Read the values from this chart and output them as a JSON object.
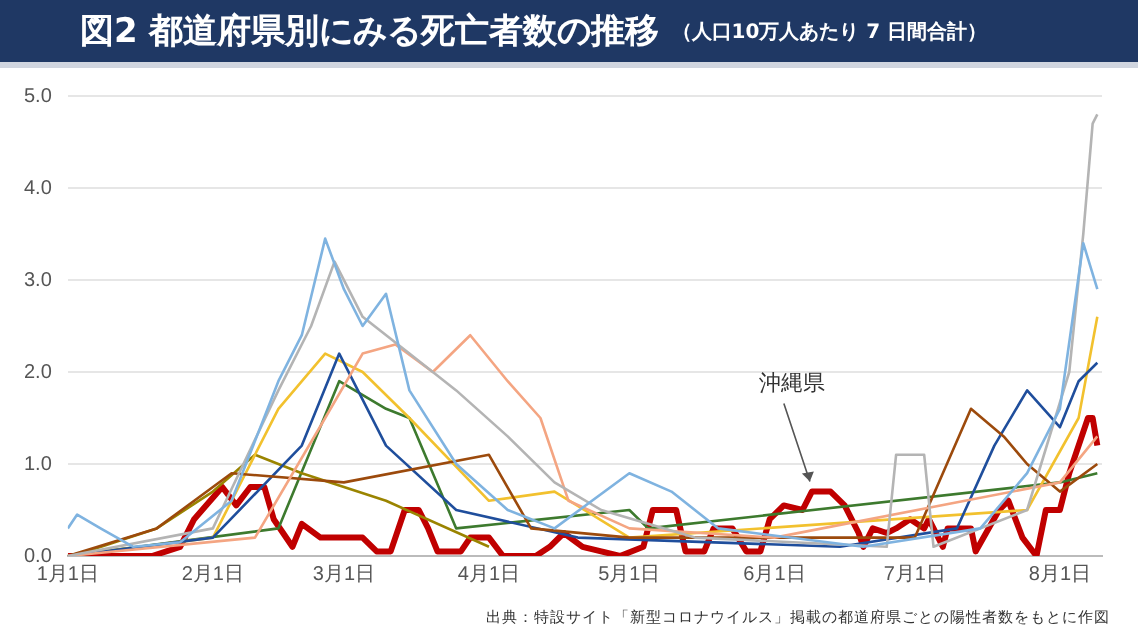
{
  "chart_data": {
    "type": "line",
    "title": "図2 都道府県別にみる死亡者数の推移",
    "subtitle": "（人口10万人あたり 7 日間合計）",
    "xlim": [
      "--01-01",
      "--08-10"
    ],
    "xticks": [
      {
        "value": "--01-01",
        "label": "1月1日"
      },
      {
        "value": "--02-01",
        "label": "2月1日"
      },
      {
        "value": "--03-01",
        "label": "3月1日"
      },
      {
        "value": "--04-01",
        "label": "4月1日"
      },
      {
        "value": "--05-01",
        "label": "5月1日"
      },
      {
        "value": "--06-01",
        "label": "6月1日"
      },
      {
        "value": "--07-01",
        "label": "7月1日"
      },
      {
        "value": "--08-01",
        "label": "8月1日"
      }
    ],
    "ylim": [
      0,
      5
    ],
    "yticks": [
      {
        "value": 0,
        "label": "0.0"
      },
      {
        "value": 1,
        "label": "1.0"
      },
      {
        "value": 2,
        "label": "2.0"
      },
      {
        "value": 3,
        "label": "3.0"
      },
      {
        "value": 4,
        "label": "4.0"
      },
      {
        "value": 5,
        "label": "5.0"
      }
    ],
    "grid": "y",
    "legend": false,
    "marker": "none",
    "series": [
      {
        "color": "#7fb3e0",
        "x": [
          "--01-01",
          "--01-03",
          "--01-08",
          "--01-15",
          "--01-25",
          "--02-05",
          "--02-15",
          "--02-20",
          "--02-25",
          "--03-01",
          "--03-05",
          "--03-10",
          "--03-15",
          "--03-25",
          "--04-05",
          "--04-15",
          "--05-01",
          "--05-10",
          "--05-20",
          "--06-20",
          "--07-15",
          "--07-25",
          "--08-01",
          "--08-06",
          "--08-09"
        ],
        "values": [
          0.3,
          0.45,
          0.3,
          0.1,
          0.15,
          0.6,
          1.9,
          2.4,
          3.45,
          2.9,
          2.5,
          2.85,
          1.8,
          1.0,
          0.5,
          0.3,
          0.9,
          0.7,
          0.3,
          0.1,
          0.3,
          0.9,
          1.6,
          3.4,
          2.9
        ]
      },
      {
        "color": "#b4b4b4",
        "x": [
          "--01-01",
          "--02-01",
          "--02-15",
          "--02-22",
          "--02-27",
          "--03-05",
          "--03-15",
          "--03-25",
          "--04-05",
          "--04-15",
          "--04-25",
          "--05-15",
          "--06-25",
          "--06-27",
          "--07-03",
          "--07-05",
          "--07-25",
          "--08-03",
          "--08-06",
          "--08-08",
          "--08-09"
        ],
        "values": [
          0,
          0.3,
          1.8,
          2.5,
          3.2,
          2.6,
          2.2,
          1.8,
          1.3,
          0.8,
          0.5,
          0.2,
          0.1,
          1.1,
          1.1,
          0.1,
          0.5,
          2.0,
          3.5,
          4.7,
          4.8
        ]
      },
      {
        "color": "#f4a582",
        "x": [
          "--01-01",
          "--02-10",
          "--02-25",
          "--03-05",
          "--03-12",
          "--03-20",
          "--03-28",
          "--04-05",
          "--04-12",
          "--04-18",
          "--05-01",
          "--06-01",
          "--08-01",
          "--08-09"
        ],
        "values": [
          0,
          0.2,
          1.5,
          2.2,
          2.3,
          2.0,
          2.4,
          1.9,
          1.5,
          0.6,
          0.3,
          0.2,
          0.8,
          1.3
        ]
      },
      {
        "color": "#9c4a0c",
        "x": [
          "--01-01",
          "--01-20",
          "--02-05",
          "--03-01",
          "--04-01",
          "--04-10",
          "--05-01",
          "--07-01",
          "--07-13",
          "--07-20",
          "--07-25",
          "--08-01",
          "--08-09"
        ],
        "values": [
          0,
          0.3,
          0.9,
          0.8,
          1.1,
          0.3,
          0.2,
          0.2,
          1.6,
          1.3,
          1.0,
          0.7,
          1.0
        ]
      },
      {
        "color": "#1f4e9c",
        "x": [
          "--01-01",
          "--02-01",
          "--02-20",
          "--02-28",
          "--03-10",
          "--03-25",
          "--04-20",
          "--06-15",
          "--07-10",
          "--07-18",
          "--07-25",
          "--08-01",
          "--08-05",
          "--08-09"
        ],
        "values": [
          0,
          0.2,
          1.2,
          2.2,
          1.2,
          0.5,
          0.2,
          0.1,
          0.3,
          1.2,
          1.8,
          1.4,
          1.9,
          2.1
        ]
      },
      {
        "color": "#f2c12e",
        "x": [
          "--01-01",
          "--02-01",
          "--02-15",
          "--02-25",
          "--03-05",
          "--03-15",
          "--04-01",
          "--04-15",
          "--05-01",
          "--07-25",
          "--08-05",
          "--08-09"
        ],
        "values": [
          0,
          0.2,
          1.6,
          2.2,
          2.0,
          1.5,
          0.6,
          0.7,
          0.2,
          0.5,
          1.5,
          2.6
        ]
      },
      {
        "color": "#9a8400",
        "x": [
          "--01-01",
          "--01-05",
          "--01-20",
          "--02-01",
          "--02-10",
          "--02-20",
          "--03-10",
          "--04-01"
        ],
        "values": [
          0,
          0.05,
          0.3,
          0.7,
          1.1,
          0.9,
          0.6,
          0.1
        ]
      },
      {
        "color": "#3d7a2e",
        "x": [
          "--01-01",
          "--02-15",
          "--02-28",
          "--03-10",
          "--03-15",
          "--03-25",
          "--05-01",
          "--05-05",
          "--08-01",
          "--08-09"
        ],
        "values": [
          0,
          0.3,
          1.9,
          1.6,
          1.5,
          0.3,
          0.5,
          0.3,
          0.8,
          0.9
        ]
      },
      {
        "color": "#c00000",
        "x": [
          "--01-01",
          "--01-19",
          "--01-25",
          "--01-28",
          "--02-03",
          "--02-06",
          "--02-09",
          "--02-12",
          "--02-14",
          "--02-18",
          "--02-20",
          "--02-24",
          "--03-05",
          "--03-08",
          "--03-11",
          "--03-14",
          "--03-17",
          "--03-19",
          "--03-21",
          "--03-26",
          "--03-28",
          "--04-01",
          "--04-04",
          "--04-11",
          "--04-14",
          "--04-17",
          "--04-21",
          "--04-29",
          "--05-04",
          "--05-06",
          "--05-11",
          "--05-13",
          "--05-17",
          "--05-19",
          "--05-23",
          "--05-26",
          "--05-29",
          "--05-31",
          "--06-03",
          "--06-07",
          "--06-09",
          "--06-13",
          "--06-16",
          "--06-19",
          "--06-20",
          "--06-22",
          "--06-25",
          "--06-27",
          "--06-30",
          "--07-03",
          "--07-04",
          "--07-07",
          "--07-08",
          "--07-13",
          "--07-14",
          "--07-19",
          "--07-21",
          "--07-24",
          "--07-27",
          "--07-29",
          "--08-01",
          "--08-03",
          "--08-07",
          "--08-08",
          "--08-09"
        ],
        "values": [
          0,
          0,
          0.1,
          0.4,
          0.75,
          0.55,
          0.75,
          0.75,
          0.4,
          0.1,
          0.35,
          0.2,
          0.2,
          0.05,
          0.05,
          0.5,
          0.5,
          0.3,
          0.05,
          0.05,
          0.2,
          0.2,
          0,
          0,
          0.1,
          0.25,
          0.1,
          0,
          0.1,
          0.5,
          0.5,
          0.05,
          0.05,
          0.3,
          0.3,
          0.05,
          0.05,
          0.4,
          0.55,
          0.5,
          0.7,
          0.7,
          0.55,
          0.25,
          0.1,
          0.3,
          0.25,
          0.3,
          0.4,
          0.3,
          0.4,
          0.1,
          0.3,
          0.3,
          0.05,
          0.5,
          0.6,
          0.2,
          0,
          0.5,
          0.5,
          0.9,
          1.5,
          1.5,
          1.2
        ]
      }
    ],
    "annotations": [
      {
        "text": "沖縄県",
        "x": "--06-09",
        "y": 0.7
      },
      "出典：特設サイト「新型コロナウイルス」掲載の都道府県ごとの陽性者数をもとに作図"
    ]
  }
}
